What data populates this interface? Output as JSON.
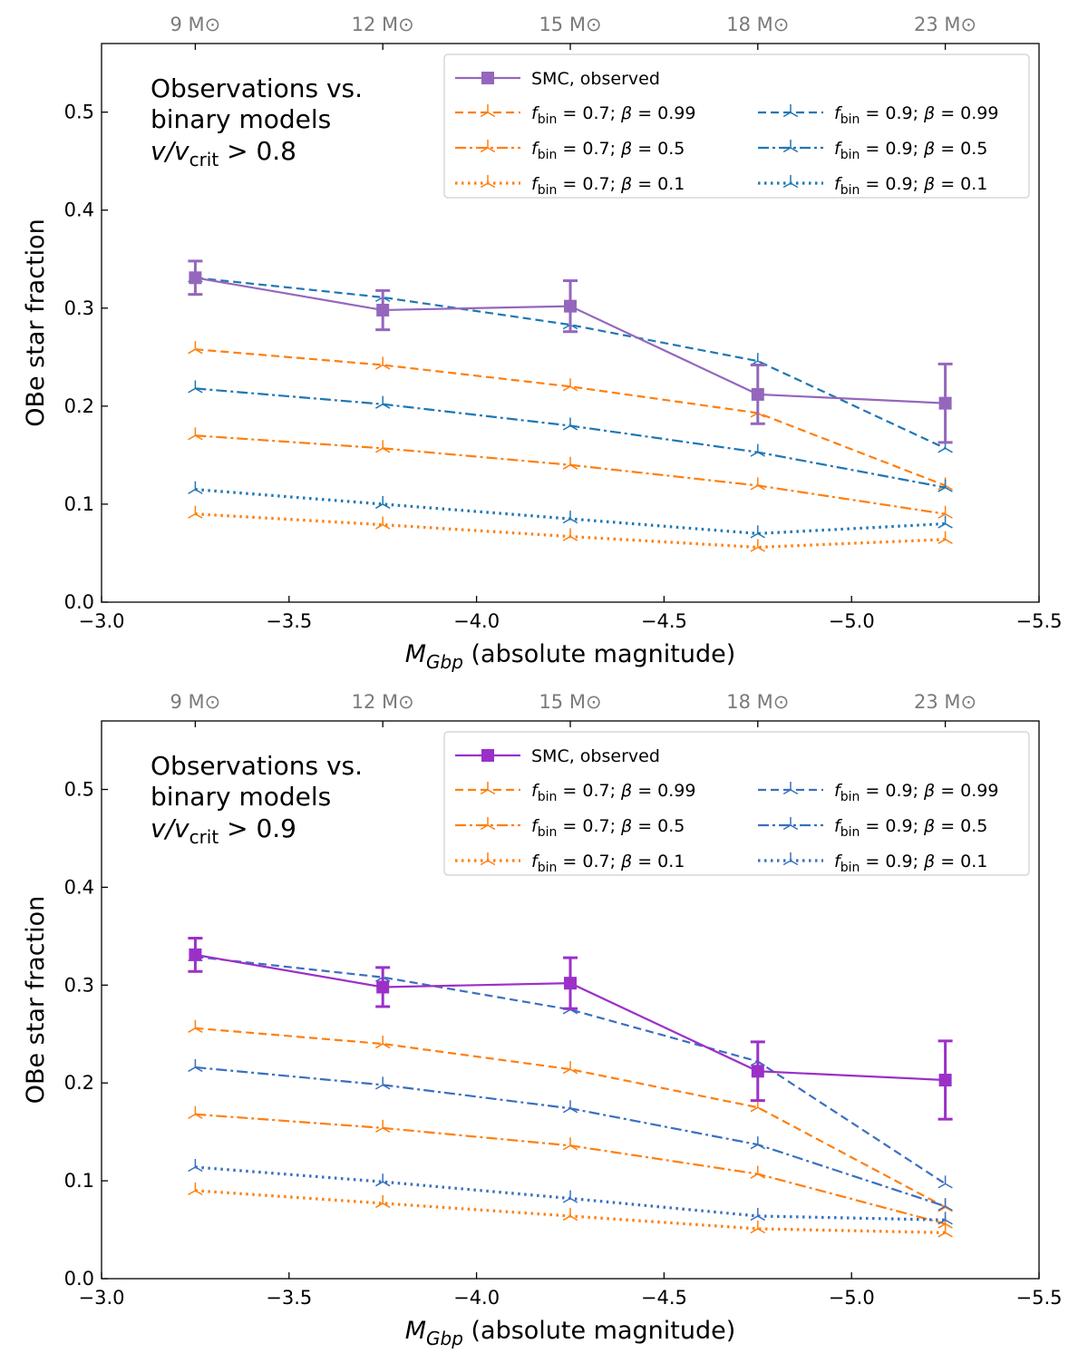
{
  "chart_data": [
    {
      "type": "line",
      "annotation": {
        "line1": "Observations vs.",
        "line2": "binary models",
        "line3_main": "v/v",
        "line3_sub": "crit",
        "line3_tail": " > 0.8"
      },
      "xlabel_main": "M",
      "xlabel_sub": "Gbp",
      "xlabel_tail": " (absolute magnitude)",
      "ylabel": "OBe star fraction",
      "xlim": [
        -3.0,
        -5.5
      ],
      "ylim": [
        0.0,
        0.57
      ],
      "xticks": [
        -3.0,
        -3.5,
        -4.0,
        -4.5,
        -5.0,
        -5.5
      ],
      "xtick_labels": [
        "−3.0",
        "−3.5",
        "−4.0",
        "−4.5",
        "−5.0",
        "−5.5"
      ],
      "yticks": [
        0.0,
        0.1,
        0.2,
        0.3,
        0.4,
        0.5
      ],
      "ytick_labels": [
        "0.0",
        "0.1",
        "0.2",
        "0.3",
        "0.4",
        "0.5"
      ],
      "top_axis": {
        "ticks": [
          -3.25,
          -3.75,
          -4.25,
          -4.75,
          -5.25
        ],
        "labels": [
          "9 M⊙",
          "12 M⊙",
          "15 M⊙",
          "18 M⊙",
          "23 M⊙"
        ]
      },
      "x": [
        -3.25,
        -3.75,
        -4.25,
        -4.75,
        -5.25
      ],
      "series": [
        {
          "name": "SMC, observed",
          "color": "#9467bd",
          "style": "solid",
          "marker": "square",
          "values": [
            0.331,
            0.298,
            0.302,
            0.212,
            0.203
          ],
          "errors": [
            0.017,
            0.02,
            0.026,
            0.03,
            0.04
          ]
        },
        {
          "name": "f_bin = 0.7; β = 0.99",
          "f": "0.7",
          "beta": "0.99",
          "color": "#ff7f0e",
          "style": "dashed",
          "marker": "tri",
          "values": [
            0.258,
            0.242,
            0.22,
            0.193,
            0.119
          ]
        },
        {
          "name": "f_bin = 0.7; β = 0.5",
          "f": "0.7",
          "beta": "0.5",
          "color": "#ff7f0e",
          "style": "dashdot",
          "marker": "tri",
          "values": [
            0.17,
            0.157,
            0.14,
            0.119,
            0.09
          ]
        },
        {
          "name": "f_bin = 0.7; β = 0.1",
          "f": "0.7",
          "beta": "0.1",
          "color": "#ff7f0e",
          "style": "dotted",
          "marker": "tri",
          "values": [
            0.09,
            0.079,
            0.067,
            0.056,
            0.064
          ]
        },
        {
          "name": "f_bin = 0.9; β = 0.99",
          "f": "0.9",
          "beta": "0.99",
          "color": "#1f77b4",
          "style": "dashed",
          "marker": "tri",
          "values": [
            0.331,
            0.311,
            0.283,
            0.246,
            0.157
          ]
        },
        {
          "name": "f_bin = 0.9; β = 0.5",
          "f": "0.9",
          "beta": "0.5",
          "color": "#1f77b4",
          "style": "dashdot",
          "marker": "tri",
          "values": [
            0.218,
            0.202,
            0.18,
            0.153,
            0.117
          ]
        },
        {
          "name": "f_bin = 0.9; β = 0.1",
          "f": "0.9",
          "beta": "0.1",
          "color": "#1f77b4",
          "style": "dotted",
          "marker": "tri",
          "values": [
            0.115,
            0.1,
            0.085,
            0.07,
            0.08
          ]
        }
      ]
    },
    {
      "type": "line",
      "annotation": {
        "line1": "Observations vs.",
        "line2": "binary models",
        "line3_main": "v/v",
        "line3_sub": "crit",
        "line3_tail": " > 0.9"
      },
      "xlabel_main": "M",
      "xlabel_sub": "Gbp",
      "xlabel_tail": " (absolute magnitude)",
      "ylabel": "OBe star fraction",
      "xlim": [
        -3.0,
        -5.5
      ],
      "ylim": [
        0.0,
        0.57
      ],
      "xticks": [
        -3.0,
        -3.5,
        -4.0,
        -4.5,
        -5.0,
        -5.5
      ],
      "xtick_labels": [
        "−3.0",
        "−3.5",
        "−4.0",
        "−4.5",
        "−5.0",
        "−5.5"
      ],
      "yticks": [
        0.0,
        0.1,
        0.2,
        0.3,
        0.4,
        0.5
      ],
      "ytick_labels": [
        "0.0",
        "0.1",
        "0.2",
        "0.3",
        "0.4",
        "0.5"
      ],
      "top_axis": {
        "ticks": [
          -3.25,
          -3.75,
          -4.25,
          -4.75,
          -5.25
        ],
        "labels": [
          "9 M⊙",
          "12 M⊙",
          "15 M⊙",
          "18 M⊙",
          "23 M⊙"
        ]
      },
      "x": [
        -3.25,
        -3.75,
        -4.25,
        -4.75,
        -5.25
      ],
      "series": [
        {
          "name": "SMC, observed",
          "color": "#9b30c8",
          "style": "solid",
          "marker": "square",
          "values": [
            0.331,
            0.298,
            0.302,
            0.212,
            0.203
          ],
          "errors": [
            0.017,
            0.02,
            0.026,
            0.03,
            0.04
          ]
        },
        {
          "name": "f_bin = 0.7; β = 0.99",
          "f": "0.7",
          "beta": "0.99",
          "color": "#ff7f0e",
          "style": "dashed",
          "marker": "tri",
          "values": [
            0.256,
            0.24,
            0.214,
            0.175,
            0.073
          ]
        },
        {
          "name": "f_bin = 0.7; β = 0.5",
          "f": "0.7",
          "beta": "0.5",
          "color": "#ff7f0e",
          "style": "dashdot",
          "marker": "tri",
          "values": [
            0.168,
            0.154,
            0.136,
            0.107,
            0.056
          ]
        },
        {
          "name": "f_bin = 0.7; β = 0.1",
          "f": "0.7",
          "beta": "0.1",
          "color": "#ff7f0e",
          "style": "dotted",
          "marker": "tri",
          "values": [
            0.09,
            0.077,
            0.064,
            0.051,
            0.047
          ]
        },
        {
          "name": "f_bin = 0.9; β = 0.99",
          "f": "0.9",
          "beta": "0.99",
          "color": "#3a6fc0",
          "style": "dashed",
          "marker": "tri",
          "values": [
            0.329,
            0.308,
            0.275,
            0.222,
            0.097
          ]
        },
        {
          "name": "f_bin = 0.9; β = 0.5",
          "f": "0.9",
          "beta": "0.5",
          "color": "#3a6fc0",
          "style": "dashdot",
          "marker": "tri",
          "values": [
            0.216,
            0.198,
            0.174,
            0.137,
            0.074
          ]
        },
        {
          "name": "f_bin = 0.9; β = 0.1",
          "f": "0.9",
          "beta": "0.1",
          "color": "#3a6fc0",
          "style": "dotted",
          "marker": "tri",
          "values": [
            0.114,
            0.099,
            0.082,
            0.064,
            0.06
          ]
        }
      ]
    }
  ]
}
